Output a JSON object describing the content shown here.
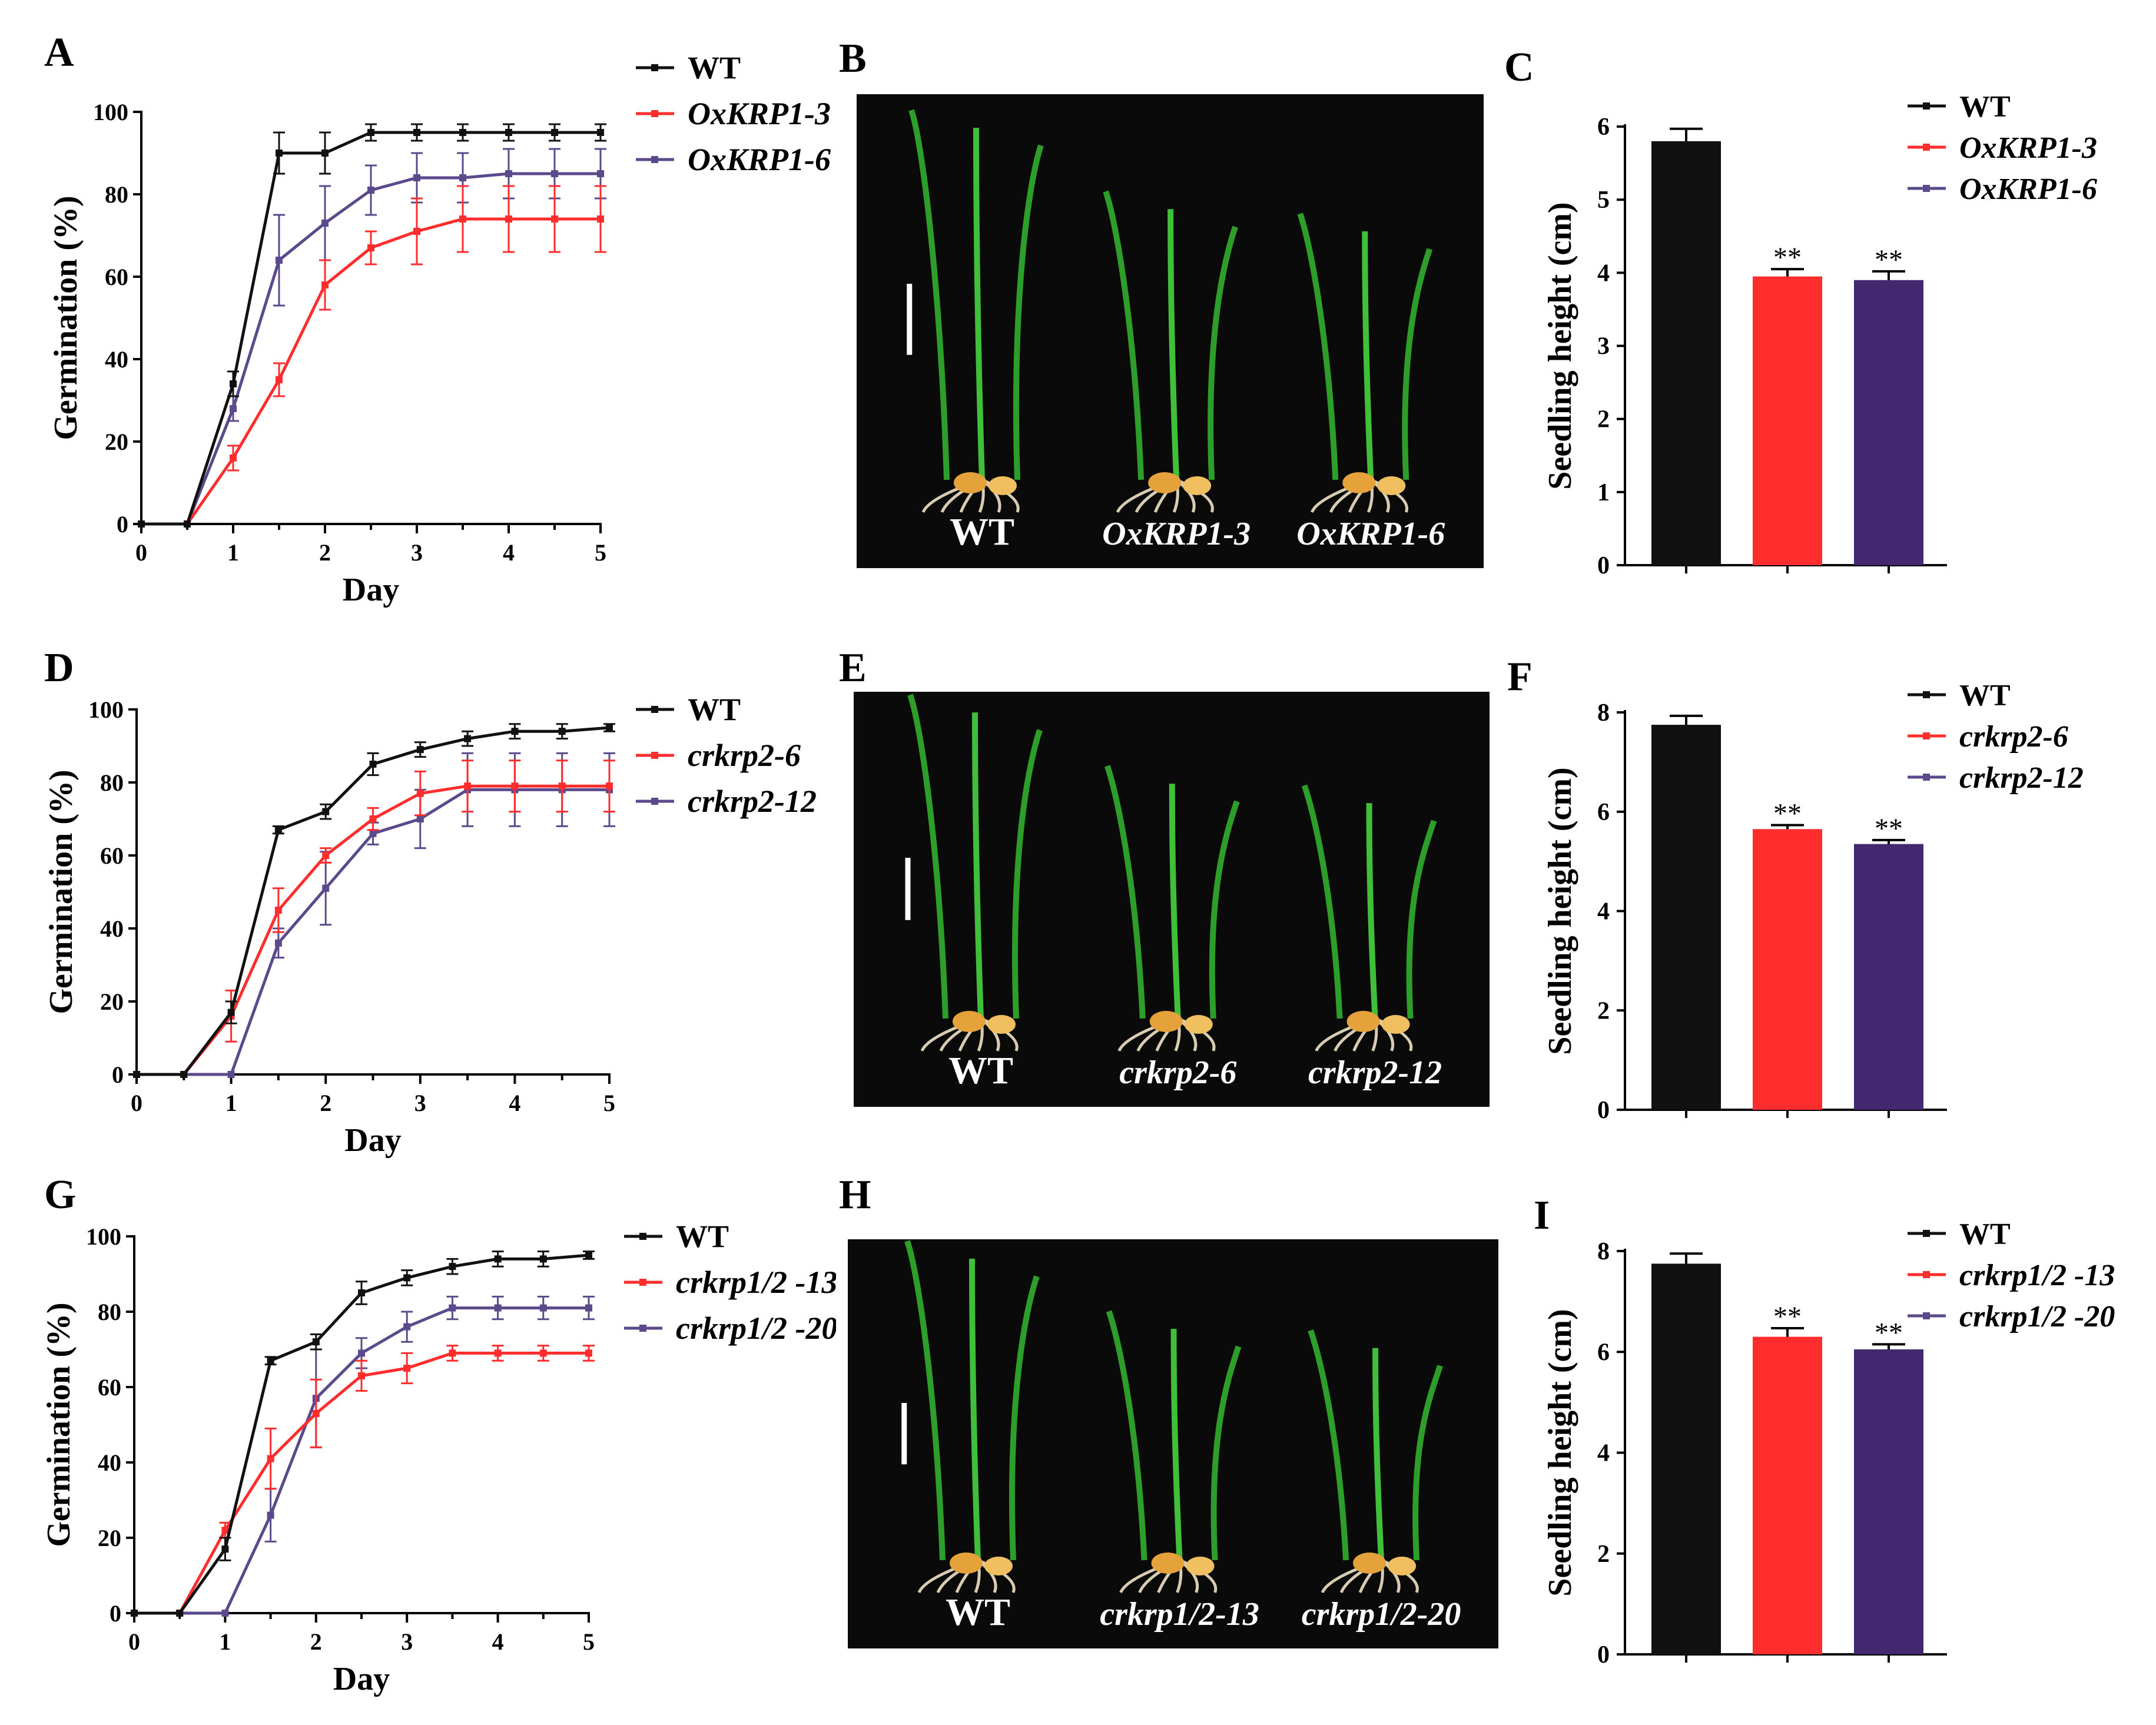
{
  "panels": {
    "A": "A",
    "B": "B",
    "C": "C",
    "D": "D",
    "E": "E",
    "F": "F",
    "G": "G",
    "H": "H",
    "I": "I"
  },
  "photos": [
    {
      "id": "B",
      "labels": [
        "WT",
        "OxKRP1-3",
        "OxKRP1-6"
      ]
    },
    {
      "id": "E",
      "labels": [
        "WT",
        "crkrp2-6",
        "crkrp2-12"
      ]
    },
    {
      "id": "H",
      "labels": [
        "WT",
        "crkrp1/2-13",
        "crkrp1/2-20"
      ]
    }
  ],
  "colors": {
    "wt": "#111111",
    "line1": "#ff2d2d",
    "line2": "#5a4a8c",
    "bar2": "#ff2d2d",
    "bar3": "#43276f"
  },
  "chart_data": [
    {
      "id": "A",
      "type": "line",
      "xlabel": "Day",
      "ylabel": "Germination (%)",
      "x": [
        0,
        0.5,
        1,
        1.5,
        2,
        2.5,
        3,
        3.5,
        4,
        4.5,
        5
      ],
      "xticks": [
        "0",
        "1",
        "2",
        "3",
        "4",
        "5"
      ],
      "yticks": [
        "0",
        "20",
        "40",
        "60",
        "80",
        "100"
      ],
      "xlim": [
        0,
        5
      ],
      "ylim": [
        0,
        100
      ],
      "series": [
        {
          "name": "WT",
          "values": [
            0,
            0,
            34,
            90,
            90,
            95,
            95,
            95,
            95,
            95,
            95
          ],
          "err": [
            0,
            0,
            3,
            5,
            5,
            2,
            2,
            2,
            2,
            2,
            2
          ]
        },
        {
          "name": "OxKRP1-3",
          "values": [
            0,
            0,
            16,
            35,
            58,
            67,
            71,
            74,
            74,
            74,
            74
          ],
          "err": [
            0,
            0,
            3,
            4,
            6,
            4,
            8,
            8,
            8,
            8,
            8
          ]
        },
        {
          "name": "OxKRP1-6",
          "values": [
            0,
            0,
            28,
            64,
            73,
            81,
            84,
            84,
            85,
            85,
            85
          ],
          "err": [
            0,
            0,
            3,
            11,
            9,
            6,
            6,
            6,
            6,
            6,
            6
          ]
        }
      ]
    },
    {
      "id": "C",
      "type": "bar",
      "ylabel": "Seedling height (cm)",
      "categories": [
        "WT",
        "OxKRP1-3",
        "OxKRP1-6"
      ],
      "values": [
        5.8,
        3.95,
        3.9
      ],
      "err": [
        0.17,
        0.1,
        0.12
      ],
      "sig": [
        "",
        "**",
        "**"
      ],
      "yticks": [
        "0",
        "1",
        "2",
        "3",
        "4",
        "5",
        "6"
      ],
      "ylim": [
        0,
        6
      ]
    },
    {
      "id": "D",
      "type": "line",
      "xlabel": "Day",
      "ylabel": "Germination (%)",
      "x": [
        0,
        0.5,
        1,
        1.5,
        2,
        2.5,
        3,
        3.5,
        4,
        4.5,
        5
      ],
      "xticks": [
        "0",
        "1",
        "2",
        "3",
        "4",
        "5"
      ],
      "yticks": [
        "0",
        "20",
        "40",
        "60",
        "80",
        "100"
      ],
      "xlim": [
        0,
        5
      ],
      "ylim": [
        0,
        100
      ],
      "series": [
        {
          "name": "WT",
          "values": [
            0,
            0,
            17,
            67,
            72,
            85,
            89,
            92,
            94,
            94,
            95
          ],
          "err": [
            0,
            0,
            3,
            1,
            2,
            3,
            2,
            2,
            2,
            2,
            1
          ]
        },
        {
          "name": "crkrp2-6",
          "values": [
            0,
            0,
            16,
            45,
            60,
            70,
            77,
            79,
            79,
            79,
            79
          ],
          "err": [
            0,
            0,
            7,
            6,
            2,
            3,
            6,
            7,
            7,
            7,
            7
          ]
        },
        {
          "name": "crkrp2-12",
          "values": [
            0,
            0,
            0,
            36,
            51,
            66,
            70,
            78,
            78,
            78,
            78
          ],
          "err": [
            0,
            0,
            0,
            4,
            10,
            3,
            8,
            10,
            10,
            10,
            10
          ]
        }
      ]
    },
    {
      "id": "F",
      "type": "bar",
      "ylabel": "Seedling height (cm)",
      "categories": [
        "WT",
        "crkrp2-6",
        "crkrp2-12"
      ],
      "values": [
        7.75,
        5.65,
        5.35
      ],
      "err": [
        0.18,
        0.08,
        0.08
      ],
      "sig": [
        "",
        "**",
        "**"
      ],
      "yticks": [
        "0",
        "2",
        "4",
        "6",
        "8"
      ],
      "ylim": [
        0,
        8
      ]
    },
    {
      "id": "G",
      "type": "line",
      "xlabel": "Day",
      "ylabel": "Germination (%)",
      "x": [
        0,
        0.5,
        1,
        1.5,
        2,
        2.5,
        3,
        3.5,
        4,
        4.5,
        5
      ],
      "xticks": [
        "0",
        "1",
        "2",
        "3",
        "4",
        "5"
      ],
      "yticks": [
        "0",
        "20",
        "40",
        "60",
        "80",
        "100"
      ],
      "xlim": [
        0,
        5
      ],
      "ylim": [
        0,
        100
      ],
      "series": [
        {
          "name": "WT",
          "values": [
            0,
            0,
            17,
            67,
            72,
            85,
            89,
            92,
            94,
            94,
            95
          ],
          "err": [
            0,
            0,
            3,
            1,
            2,
            3,
            2,
            2,
            2,
            2,
            1
          ]
        },
        {
          "name": "crkrp1/2 -13",
          "values": [
            0,
            0,
            22,
            41,
            53,
            63,
            65,
            69,
            69,
            69,
            69
          ],
          "err": [
            0,
            0,
            2,
            8,
            9,
            4,
            4,
            2,
            2,
            2,
            2
          ]
        },
        {
          "name": "crkrp1/2 -20",
          "values": [
            0,
            0,
            0,
            26,
            57,
            69,
            76,
            81,
            81,
            81,
            81
          ],
          "err": [
            0,
            0,
            0,
            7,
            13,
            4,
            4,
            3,
            3,
            3,
            3
          ]
        }
      ]
    },
    {
      "id": "I",
      "type": "bar",
      "ylabel": "Seedling height (cm)",
      "categories": [
        "WT",
        "crkrp1/2 -13",
        "crkrp1/2 -20"
      ],
      "values": [
        7.75,
        6.3,
        6.05
      ],
      "err": [
        0.2,
        0.17,
        0.1
      ],
      "sig": [
        "",
        "**",
        "**"
      ],
      "yticks": [
        "0",
        "2",
        "4",
        "6",
        "8"
      ],
      "ylim": [
        0,
        8
      ]
    }
  ]
}
